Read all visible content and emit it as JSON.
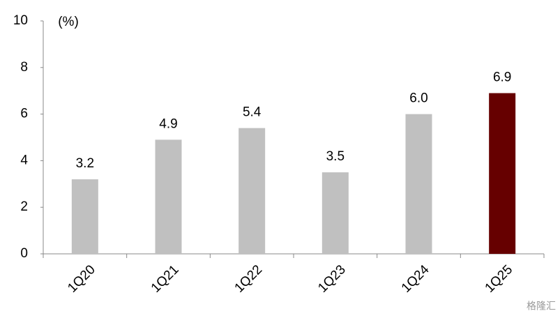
{
  "chart_data": {
    "type": "bar",
    "unit_label": "(%)",
    "categories": [
      "1Q20",
      "1Q21",
      "1Q22",
      "1Q23",
      "1Q24",
      "1Q25"
    ],
    "values": [
      3.2,
      4.9,
      5.4,
      3.5,
      6.0,
      6.9
    ],
    "value_labels": [
      "3.2",
      "4.9",
      "5.4",
      "3.5",
      "6.0",
      "6.9"
    ],
    "colors": [
      "#c0c0c0",
      "#c0c0c0",
      "#c0c0c0",
      "#c0c0c0",
      "#c0c0c0",
      "#660000"
    ],
    "ylim": [
      0,
      10
    ],
    "yticks": [
      0,
      2,
      4,
      6,
      8,
      10
    ],
    "grid": false,
    "watermark": "格隆汇"
  }
}
